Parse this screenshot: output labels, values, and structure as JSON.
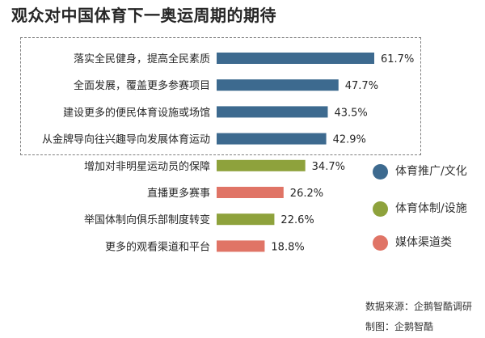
{
  "title": "观众对中国体育下一奥运周期的期待",
  "chart_data": {
    "type": "bar",
    "orientation": "horizontal",
    "categories": [
      "落实全民健身，提高全民素质",
      "全面发展，覆盖更多参赛项目",
      "建设更多的便民体育设施或场馆",
      "从金牌导向往兴趣导向发展体育运动",
      "增加对非明星运动员的保障",
      "直播更多赛事",
      "举国体制向俱乐部制度转变",
      "更多的观看渠道和平台"
    ],
    "values": [
      61.7,
      47.7,
      43.5,
      42.9,
      34.7,
      26.2,
      22.6,
      18.8
    ],
    "value_labels": [
      "61.7%",
      "47.7%",
      "43.5%",
      "42.9%",
      "34.7%",
      "26.2%",
      "22.6%",
      "18.8%"
    ],
    "groups": [
      "体育推广/文化",
      "体育推广/文化",
      "体育推广/文化",
      "体育推广/文化",
      "体育体制/设施",
      "媒体渠道类",
      "体育体制/设施",
      "媒体渠道类"
    ],
    "legend": [
      {
        "name": "体育推广/文化",
        "color": "#3d6a8f"
      },
      {
        "name": "体育体制/设施",
        "color": "#8ea23c"
      },
      {
        "name": "媒体渠道类",
        "color": "#e07466"
      }
    ],
    "xlim": [
      0,
      70
    ],
    "legend_position": "right",
    "highlighted_categories": 4
  },
  "footer": {
    "source": "数据来源：企鹅智酷调研",
    "made_by": "制图：企鹅智酷"
  }
}
